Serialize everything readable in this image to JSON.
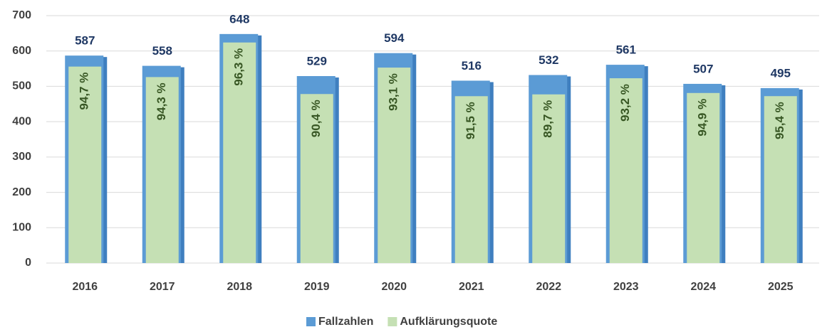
{
  "chart_data": {
    "type": "overlap_bar",
    "categories": [
      "2016",
      "2017",
      "2018",
      "2019",
      "2020",
      "2021",
      "2022",
      "2023",
      "2024",
      "2025"
    ],
    "series": [
      {
        "name": "Fallzahlen",
        "color": "#5b9bd5",
        "values": [
          587,
          558,
          648,
          529,
          594,
          516,
          532,
          561,
          507,
          495
        ]
      },
      {
        "name": "Aufklärungsquote",
        "color": "#c5e0b4",
        "values": [
          94.7,
          94.3,
          96.3,
          90.4,
          93.1,
          91.5,
          89.7,
          93.2,
          94.9,
          95.4
        ],
        "value_labels": [
          "94,7 %",
          "94,3 %",
          "96,3 %",
          "90,4 %",
          "93,1 %",
          "91,5 %",
          "89,7 %",
          "93,2 %",
          "94,9 %",
          "95,4 %"
        ]
      }
    ],
    "ylim": [
      0,
      700
    ],
    "yticks": [
      0,
      100,
      200,
      300,
      400,
      500,
      600,
      700
    ],
    "grid": true,
    "legend": "bottom"
  }
}
